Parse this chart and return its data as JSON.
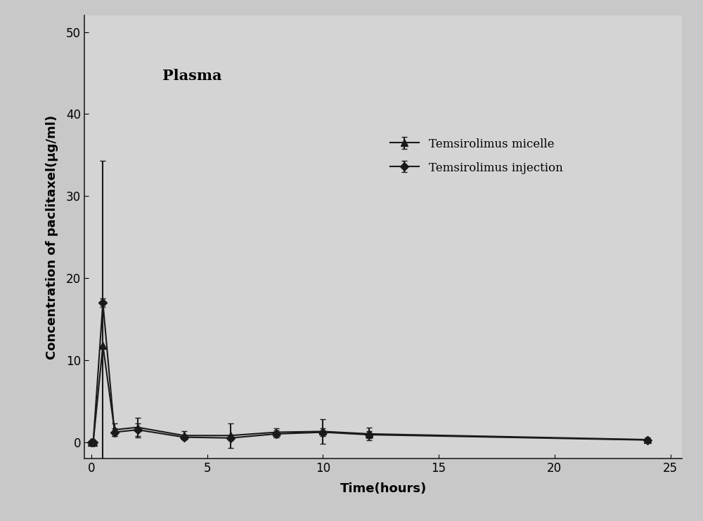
{
  "title_annotation": "Plasma",
  "xlabel": "Time(hours)",
  "ylabel": "Concentration of paclitaxel(μg/ml)",
  "xlim": [
    -0.3,
    25.5
  ],
  "ylim": [
    -2,
    52
  ],
  "yticks": [
    0,
    10,
    20,
    30,
    40,
    50
  ],
  "xticks": [
    0,
    5,
    10,
    15,
    20,
    25
  ],
  "axes_facecolor": "#d4d4d4",
  "figure_facecolor": "#c8c8c8",
  "micelle_x": [
    0,
    0.083,
    0.5,
    1,
    2,
    4,
    6,
    8,
    10,
    12,
    24
  ],
  "micelle_y": [
    0,
    0,
    11.8,
    1.5,
    1.8,
    0.8,
    0.8,
    1.2,
    1.3,
    1.0,
    0.3
  ],
  "micelle_yerr": [
    0,
    0,
    22.5,
    0.8,
    1.2,
    0.5,
    1.5,
    0.5,
    1.5,
    0.8,
    0.3
  ],
  "injection_x": [
    0,
    0.083,
    0.5,
    1,
    2,
    4,
    6,
    8,
    10,
    12,
    24
  ],
  "injection_y": [
    0,
    0,
    17.0,
    1.2,
    1.5,
    0.6,
    0.5,
    1.0,
    1.2,
    0.9,
    0.25
  ],
  "injection_yerr": [
    0,
    0,
    0.5,
    0.5,
    0.8,
    0.3,
    0.3,
    0.4,
    0.5,
    0.4,
    0.2
  ],
  "line_color": "#1a1a1a",
  "marker_micelle": "^",
  "marker_injection": "D",
  "markersize_micelle": 7,
  "markersize_injection": 6,
  "linewidth": 1.5,
  "legend_micelle": "Temsirolimus micelle",
  "legend_injection": "Temsirolimus injection",
  "annotation_fontsize": 15,
  "axis_label_fontsize": 13,
  "tick_fontsize": 12,
  "legend_fontsize": 12
}
